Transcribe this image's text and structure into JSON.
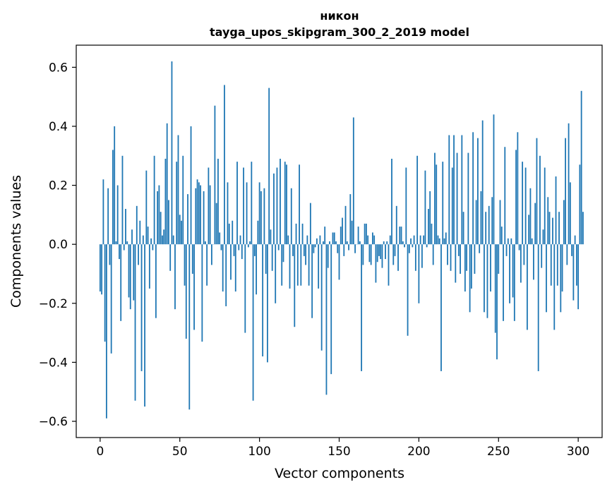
{
  "chart_data": {
    "type": "bar",
    "title_lines": [
      "никон",
      "tayga_upos_skipgram_300_2_2019 model"
    ],
    "xlabel": "Vector components",
    "ylabel": "Components values",
    "xlim": [
      -15,
      315
    ],
    "ylim": [
      -0.655,
      0.675
    ],
    "xticks": [
      0,
      50,
      100,
      150,
      200,
      250,
      300
    ],
    "yticks": [
      -0.6,
      -0.4,
      -0.2,
      0.0,
      0.2,
      0.4,
      0.6
    ],
    "ytick_labels": [
      "−0.6",
      "−0.4",
      "−0.2",
      "0.0",
      "0.2",
      "0.4",
      "0.6"
    ],
    "bar_color": "#1f77b4",
    "grid": false,
    "legend": "none",
    "series": [
      {
        "x_start": 0,
        "values": [
          -0.16,
          -0.17,
          0.22,
          -0.33,
          -0.59,
          0.19,
          -0.07,
          -0.37,
          0.32,
          0.4,
          0.01,
          0.2,
          -0.05,
          -0.26,
          0.3,
          -0.02,
          0.12,
          0.01,
          -0.18,
          -0.22,
          0.05,
          -0.19,
          -0.53,
          0.13,
          -0.07,
          0.08,
          -0.43,
          0.03,
          -0.55,
          0.25,
          0.06,
          -0.15,
          0.02,
          -0.02,
          0.3,
          -0.25,
          0.18,
          0.2,
          0.11,
          0.03,
          0.05,
          0.29,
          0.41,
          0.15,
          -0.09,
          0.62,
          0.03,
          -0.22,
          0.28,
          0.37,
          0.1,
          0.08,
          0.3,
          -0.14,
          -0.32,
          0.17,
          -0.56,
          0.4,
          -0.1,
          -0.29,
          0.19,
          0.22,
          0.21,
          0.2,
          -0.33,
          0.18,
          0.01,
          -0.14,
          0.26,
          0.2,
          -0.07,
          0.0,
          0.47,
          0.14,
          0.29,
          0.04,
          -0.02,
          -0.16,
          0.54,
          -0.21,
          0.21,
          0.07,
          -0.12,
          0.08,
          -0.04,
          -0.16,
          0.28,
          -0.02,
          0.03,
          -0.05,
          0.26,
          -0.3,
          0.21,
          -0.01,
          0.01,
          0.28,
          -0.53,
          -0.04,
          -0.17,
          0.08,
          0.21,
          0.18,
          -0.38,
          0.19,
          -0.1,
          -0.4,
          0.53,
          0.05,
          -0.09,
          0.24,
          -0.2,
          0.26,
          -0.02,
          0.29,
          -0.14,
          -0.06,
          0.28,
          0.27,
          0.03,
          -0.15,
          0.19,
          -0.04,
          -0.28,
          0.07,
          -0.14,
          0.27,
          -0.14,
          0.07,
          -0.04,
          -0.07,
          0.03,
          -0.14,
          0.14,
          -0.25,
          -0.03,
          -0.01,
          0.02,
          -0.15,
          0.03,
          -0.36,
          0.01,
          0.06,
          -0.51,
          -0.08,
          0.01,
          -0.44,
          0.04,
          0.04,
          0.01,
          -0.03,
          -0.12,
          0.06,
          0.09,
          -0.04,
          0.13,
          0.01,
          -0.02,
          0.17,
          0.08,
          0.43,
          -0.03,
          0.0,
          0.06,
          0.01,
          -0.43,
          -0.07,
          0.07,
          0.07,
          0.03,
          -0.06,
          -0.07,
          0.04,
          0.03,
          -0.13,
          -0.06,
          -0.04,
          -0.05,
          -0.08,
          0.01,
          -0.05,
          0.01,
          -0.14,
          0.03,
          0.29,
          -0.07,
          -0.04,
          0.13,
          -0.09,
          0.06,
          0.06,
          0.01,
          -0.01,
          0.26,
          -0.31,
          -0.03,
          0.02,
          -0.01,
          0.03,
          -0.09,
          0.3,
          -0.2,
          0.03,
          -0.08,
          0.03,
          0.25,
          -0.01,
          0.12,
          0.18,
          0.07,
          -0.07,
          0.31,
          0.27,
          0.03,
          0.02,
          -0.43,
          0.28,
          0.02,
          0.04,
          -0.07,
          0.37,
          -0.09,
          0.26,
          0.37,
          -0.13,
          0.31,
          -0.04,
          -0.1,
          0.37,
          0.11,
          -0.16,
          -0.09,
          0.31,
          -0.23,
          -0.15,
          0.38,
          -0.1,
          0.15,
          0.36,
          -0.03,
          0.18,
          0.42,
          -0.23,
          0.11,
          -0.25,
          0.13,
          -0.16,
          0.16,
          0.44,
          -0.3,
          -0.39,
          -0.1,
          0.15,
          0.06,
          -0.26,
          0.33,
          -0.04,
          0.02,
          -0.2,
          0.02,
          -0.18,
          -0.26,
          0.32,
          0.38,
          -0.02,
          -0.13,
          0.28,
          -0.07,
          0.26,
          -0.29,
          0.1,
          0.19,
          0.02,
          -0.12,
          0.14,
          0.36,
          -0.43,
          0.3,
          -0.08,
          0.05,
          0.26,
          -0.23,
          0.16,
          0.11,
          -0.14,
          0.09,
          -0.29,
          0.23,
          -0.14,
          0.11,
          -0.23,
          -0.16,
          0.15,
          0.36,
          -0.07,
          0.41,
          0.21,
          -0.04,
          -0.19,
          0.03,
          -0.14,
          -0.22,
          0.27,
          0.52,
          0.11
        ]
      }
    ]
  }
}
